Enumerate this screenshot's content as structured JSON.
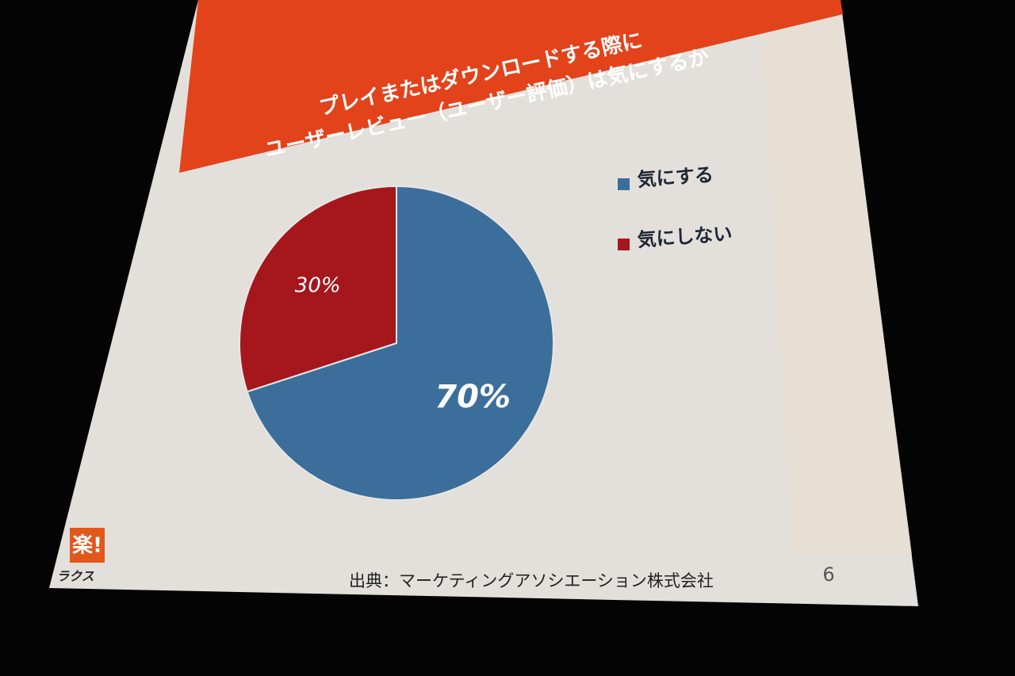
{
  "chart_data": {
    "type": "pie",
    "title": [
      "プレイまたはダウンロードする際に",
      "ユーザーレビュー（ユーザー評価）は気にするか"
    ],
    "categories": [
      "気にする",
      "気にしない"
    ],
    "values": [
      70,
      30
    ],
    "value_labels": [
      "70%",
      "30%"
    ],
    "colors": [
      "#3b6e9b",
      "#a5171d"
    ]
  },
  "source": "出典：マーケティングアソシエーション株式会社",
  "page_number": "6",
  "logo": {
    "mark": "楽!",
    "name": "ラクス"
  }
}
